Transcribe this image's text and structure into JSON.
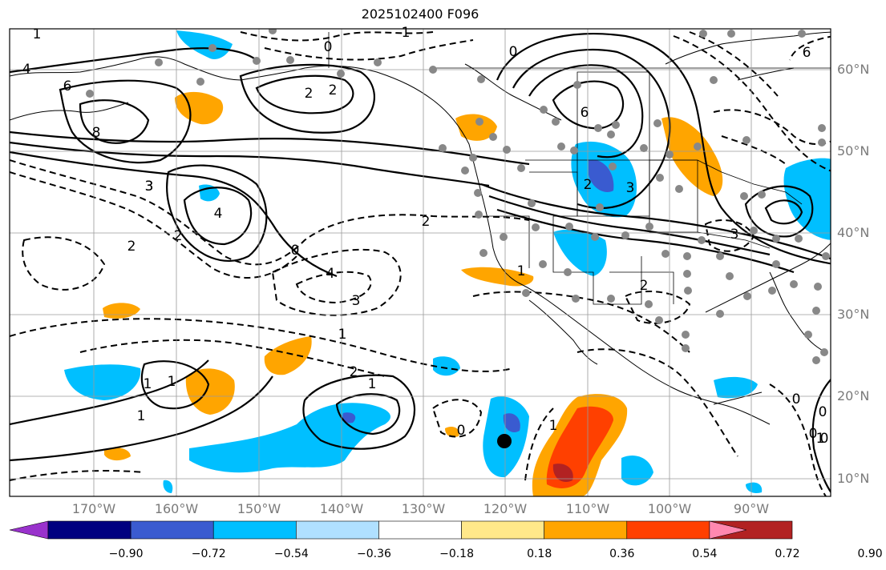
{
  "map": {
    "title": "2025102400 F096",
    "lat_labels": [
      "60°N",
      "50°N",
      "40°N",
      "30°N",
      "20°N",
      "10°N"
    ],
    "lon_labels": [
      "170°W",
      "160°W",
      "150°W",
      "140°W",
      "130°W",
      "120°W",
      "110°W",
      "100°W",
      "90°W"
    ],
    "colorbar": {
      "tick_labels": [
        "−0.90",
        "−0.72",
        "−0.54",
        "−0.36",
        "−0.18",
        "0.18",
        "0.36",
        "0.54",
        "0.72",
        "0.90"
      ],
      "colors": [
        "#9932cc",
        "#000080",
        "#3a5bd0",
        "#00bfff",
        "#b0e0ff",
        "#ffffff",
        "#ffe88a",
        "#ffa500",
        "#ff4000",
        "#b22222",
        "#ff88b0"
      ]
    },
    "contour_labels": {
      "solid": [
        "4",
        "6",
        "8",
        "2",
        "2",
        "4",
        "6",
        "3",
        "2",
        "1",
        "1",
        "2",
        "1",
        "0",
        "0",
        "1",
        "2",
        "3"
      ],
      "dashed": [
        "1",
        "0",
        "1",
        "0",
        "3",
        "2",
        "0",
        "1",
        "4",
        "3",
        "2",
        "1",
        "0",
        "1",
        "0",
        "2",
        "1",
        "0",
        "6",
        "3"
      ]
    },
    "fill_colors": {
      "negative_light": "#00bfff",
      "negative_dark": "#3a5bd0",
      "positive_light": "#ffa500",
      "positive_dark": "#ff4000",
      "positive_darker": "#b22222"
    },
    "station_marker_color": "#888888",
    "point_marker_color": "#000000"
  }
}
